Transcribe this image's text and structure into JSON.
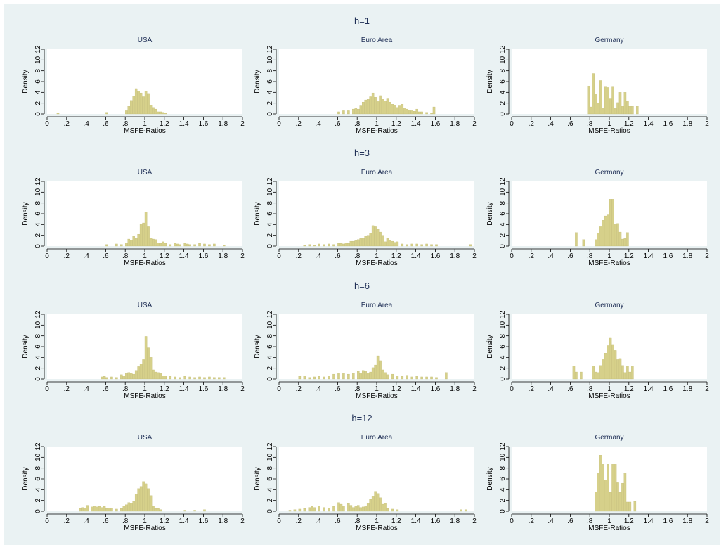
{
  "colors": {
    "background": "#eaf2f3",
    "plot_background": "#ffffff",
    "bar_fill": "#d6d08a",
    "bar_edge": "#bdb66a",
    "title_text": "#1f2f56"
  },
  "chart_data": {
    "type": "bar",
    "xlabel": "MSFE-Ratios",
    "ylabel": "Density",
    "xticks": [
      "0",
      ".2",
      ".4",
      ".6",
      ".8",
      "1",
      "1.2",
      "1.4",
      "1.6",
      "1.8",
      "2"
    ],
    "yticks": [
      "0",
      "2",
      "4",
      "6",
      "8",
      "10",
      "12"
    ],
    "xlim": [
      0,
      2
    ],
    "ylim": [
      0,
      12
    ],
    "bin_width": 0.025,
    "panel_titles": [
      "USA",
      "Euro Area",
      "Germany"
    ],
    "horizons": [
      {
        "title": "h=1",
        "panels": [
          {
            "name": "USA",
            "bin_starts": [
              0.1,
              0.6,
              0.8,
              0.825,
              0.85,
              0.875,
              0.9,
              0.925,
              0.95,
              0.975,
              1.0,
              1.025,
              1.05,
              1.075,
              1.1,
              1.125,
              1.15,
              1.175,
              1.2
            ],
            "values": [
              0.2,
              0.3,
              0.6,
              1.4,
              2.5,
              3.3,
              4.7,
              4.2,
              3.9,
              3.2,
              4.2,
              3.8,
              1.6,
              1.2,
              0.9,
              0.4,
              0.4,
              0.3,
              0.2
            ]
          },
          {
            "name": "Euro Area",
            "bin_starts": [
              0.6,
              0.65,
              0.7,
              0.75,
              0.775,
              0.8,
              0.825,
              0.85,
              0.875,
              0.9,
              0.925,
              0.95,
              0.975,
              1.0,
              1.025,
              1.05,
              1.075,
              1.1,
              1.125,
              1.15,
              1.175,
              1.2,
              1.225,
              1.25,
              1.275,
              1.3,
              1.325,
              1.35,
              1.375,
              1.4,
              1.425,
              1.45,
              1.5,
              1.55,
              1.575
            ],
            "values": [
              0.4,
              0.6,
              0.6,
              0.9,
              1.1,
              0.9,
              1.5,
              2.2,
              2.6,
              2.7,
              3.2,
              3.9,
              3.1,
              2.3,
              3.4,
              2.7,
              2.4,
              2.8,
              2.2,
              1.8,
              1.6,
              1.2,
              1.5,
              1.8,
              1.1,
              0.9,
              0.7,
              0.6,
              0.5,
              0.9,
              0.4,
              0.4,
              0.3,
              0.2,
              1.3
            ]
          },
          {
            "name": "Germany",
            "bin_starts": [
              0.775,
              0.8,
              0.825,
              0.85,
              0.875,
              0.9,
              0.925,
              0.95,
              0.975,
              1.0,
              1.025,
              1.05,
              1.075,
              1.1,
              1.125,
              1.15,
              1.175,
              1.2,
              1.225,
              1.275
            ],
            "values": [
              5.2,
              1.3,
              7.5,
              3.7,
              2.0,
              6.2,
              1.0,
              5.0,
              4.9,
              2.8,
              5.0,
              1.0,
              2.1,
              4.0,
              1.4,
              4.0,
              2.4,
              1.4,
              1.4,
              1.4
            ]
          }
        ]
      },
      {
        "title": "h=3",
        "panels": [
          {
            "name": "USA",
            "bin_starts": [
              0.6,
              0.7,
              0.75,
              0.8,
              0.825,
              0.85,
              0.875,
              0.9,
              0.925,
              0.95,
              0.975,
              1.0,
              1.025,
              1.05,
              1.075,
              1.1,
              1.125,
              1.15,
              1.175,
              1.2,
              1.25,
              1.3,
              1.325,
              1.35,
              1.4,
              1.425,
              1.45,
              1.5,
              1.55,
              1.6,
              1.65,
              1.7,
              1.8
            ],
            "values": [
              0.3,
              0.4,
              0.3,
              0.6,
              1.3,
              1.1,
              1.8,
              1.4,
              2.2,
              4.0,
              4.3,
              6.3,
              3.6,
              1.5,
              1.3,
              1.2,
              0.6,
              0.5,
              0.8,
              0.5,
              0.3,
              0.5,
              0.4,
              0.3,
              0.5,
              0.4,
              0.3,
              0.3,
              0.5,
              0.4,
              0.3,
              0.4,
              0.2
            ]
          },
          {
            "name": "Euro Area",
            "bin_starts": [
              0.25,
              0.3,
              0.35,
              0.4,
              0.45,
              0.5,
              0.55,
              0.6,
              0.625,
              0.65,
              0.675,
              0.7,
              0.725,
              0.75,
              0.775,
              0.8,
              0.825,
              0.85,
              0.875,
              0.9,
              0.925,
              0.95,
              0.975,
              1.0,
              1.025,
              1.05,
              1.075,
              1.1,
              1.125,
              1.15,
              1.175,
              1.2,
              1.25,
              1.3,
              1.35,
              1.4,
              1.45,
              1.5,
              1.55,
              1.6,
              1.95
            ],
            "values": [
              0.2,
              0.3,
              0.2,
              0.4,
              0.3,
              0.4,
              0.3,
              0.5,
              0.5,
              0.4,
              0.6,
              0.5,
              0.9,
              0.9,
              1.0,
              1.2,
              1.4,
              1.5,
              1.8,
              2.0,
              2.4,
              3.8,
              3.6,
              3.1,
              2.6,
              2.0,
              0.8,
              1.4,
              1.0,
              0.9,
              0.7,
              0.8,
              0.4,
              0.3,
              0.4,
              0.4,
              0.3,
              0.4,
              0.3,
              0.3,
              0.3
            ]
          },
          {
            "name": "Germany",
            "bin_starts": [
              0.65,
              0.725,
              0.85,
              0.875,
              0.9,
              0.925,
              0.95,
              0.975,
              1.0,
              1.025,
              1.05,
              1.075,
              1.1,
              1.125,
              1.15,
              1.175
            ],
            "values": [
              2.5,
              1.2,
              1.2,
              2.4,
              3.6,
              4.8,
              5.6,
              5.8,
              8.7,
              8.7,
              4.0,
              4.2,
              2.6,
              1.3,
              1.4,
              2.5
            ]
          }
        ]
      },
      {
        "title": "h=6",
        "panels": [
          {
            "name": "USA",
            "bin_starts": [
              0.55,
              0.575,
              0.6,
              0.65,
              0.7,
              0.75,
              0.775,
              0.8,
              0.825,
              0.85,
              0.875,
              0.9,
              0.925,
              0.95,
              0.975,
              1.0,
              1.025,
              1.05,
              1.075,
              1.1,
              1.125,
              1.15,
              1.175,
              1.2,
              1.25,
              1.3,
              1.35,
              1.4,
              1.45,
              1.5,
              1.55,
              1.6,
              1.65,
              1.7,
              1.75,
              1.8
            ],
            "values": [
              0.4,
              0.5,
              0.3,
              0.4,
              0.3,
              0.8,
              0.6,
              1.0,
              1.2,
              1.1,
              0.9,
              1.6,
              2.3,
              2.8,
              3.6,
              7.9,
              5.8,
              4.0,
              1.7,
              1.3,
              1.2,
              1.0,
              0.6,
              0.6,
              0.5,
              0.4,
              0.3,
              0.5,
              0.4,
              0.3,
              0.4,
              0.3,
              0.4,
              0.3,
              0.3,
              0.3
            ]
          },
          {
            "name": "Euro Area",
            "bin_starts": [
              0.2,
              0.25,
              0.3,
              0.35,
              0.4,
              0.45,
              0.5,
              0.55,
              0.6,
              0.65,
              0.7,
              0.75,
              0.8,
              0.825,
              0.85,
              0.875,
              0.9,
              0.925,
              0.95,
              0.975,
              1.0,
              1.025,
              1.05,
              1.075,
              1.1,
              1.15,
              1.2,
              1.25,
              1.3,
              1.35,
              1.4,
              1.45,
              1.5,
              1.55,
              1.6,
              1.7
            ],
            "values": [
              0.5,
              0.6,
              0.3,
              0.4,
              0.5,
              0.4,
              0.6,
              0.9,
              1.0,
              1.0,
              0.9,
              1.0,
              1.4,
              1.0,
              1.6,
              1.4,
              1.1,
              1.3,
              2.1,
              2.6,
              4.3,
              3.4,
              1.7,
              1.2,
              0.8,
              0.9,
              0.6,
              0.5,
              0.7,
              0.4,
              0.5,
              0.4,
              0.4,
              0.4,
              0.3,
              1.2
            ]
          },
          {
            "name": "Germany",
            "bin_starts": [
              0.625,
              0.65,
              0.7,
              0.825,
              0.85,
              0.875,
              0.9,
              0.925,
              0.95,
              0.975,
              1.0,
              1.025,
              1.05,
              1.075,
              1.1,
              1.125,
              1.15,
              1.175,
              1.2,
              1.225
            ],
            "values": [
              2.4,
              1.3,
              1.3,
              2.4,
              1.3,
              1.2,
              2.5,
              3.6,
              4.8,
              6.2,
              7.7,
              6.4,
              5.3,
              3.6,
              3.8,
              2.5,
              1.2,
              2.4,
              1.3,
              2.4
            ]
          }
        ]
      },
      {
        "title": "h=12",
        "panels": [
          {
            "name": "USA",
            "bin_starts": [
              0.325,
              0.35,
              0.375,
              0.4,
              0.45,
              0.475,
              0.5,
              0.525,
              0.55,
              0.575,
              0.6,
              0.625,
              0.65,
              0.7,
              0.75,
              0.775,
              0.8,
              0.825,
              0.85,
              0.875,
              0.9,
              0.925,
              0.95,
              0.975,
              1.0,
              1.025,
              1.05,
              1.075,
              1.1,
              1.125,
              1.15,
              1.4,
              1.5,
              1.6
            ],
            "values": [
              0.5,
              0.7,
              0.6,
              1.1,
              0.8,
              1.0,
              0.8,
              0.9,
              0.7,
              0.9,
              0.5,
              0.6,
              0.6,
              0.4,
              0.5,
              1.0,
              1.2,
              1.6,
              1.5,
              1.8,
              3.2,
              4.2,
              4.6,
              5.5,
              5.1,
              4.2,
              2.9,
              1.0,
              0.5,
              0.5,
              0.3,
              0.2,
              0.2,
              0.3
            ]
          },
          {
            "name": "Euro Area",
            "bin_starts": [
              0.1,
              0.15,
              0.2,
              0.25,
              0.3,
              0.325,
              0.35,
              0.4,
              0.45,
              0.5,
              0.55,
              0.6,
              0.625,
              0.65,
              0.7,
              0.725,
              0.75,
              0.775,
              0.8,
              0.825,
              0.85,
              0.875,
              0.9,
              0.925,
              0.95,
              0.975,
              1.0,
              1.025,
              1.05,
              1.075,
              1.1,
              1.15,
              1.2,
              1.85,
              1.9
            ],
            "values": [
              0.2,
              0.3,
              0.4,
              0.5,
              0.7,
              0.9,
              0.7,
              1.0,
              0.7,
              0.6,
              0.9,
              1.6,
              1.3,
              1.0,
              1.4,
              1.1,
              0.7,
              1.0,
              1.1,
              0.7,
              0.8,
              1.0,
              1.5,
              2.2,
              2.7,
              3.7,
              3.3,
              2.5,
              1.3,
              1.4,
              0.5,
              0.4,
              0.3,
              0.3,
              0.3
            ]
          },
          {
            "name": "Germany",
            "bin_starts": [
              0.85,
              0.875,
              0.9,
              0.925,
              0.95,
              0.975,
              1.0,
              1.025,
              1.05,
              1.075,
              1.1,
              1.125,
              1.15,
              1.175,
              1.2,
              1.25
            ],
            "values": [
              3.6,
              7.0,
              10.4,
              8.7,
              5.8,
              8.7,
              3.5,
              8.7,
              8.7,
              5.3,
              3.5,
              5.2,
              7.0,
              1.7,
              1.7,
              1.8
            ]
          }
        ]
      }
    ]
  }
}
